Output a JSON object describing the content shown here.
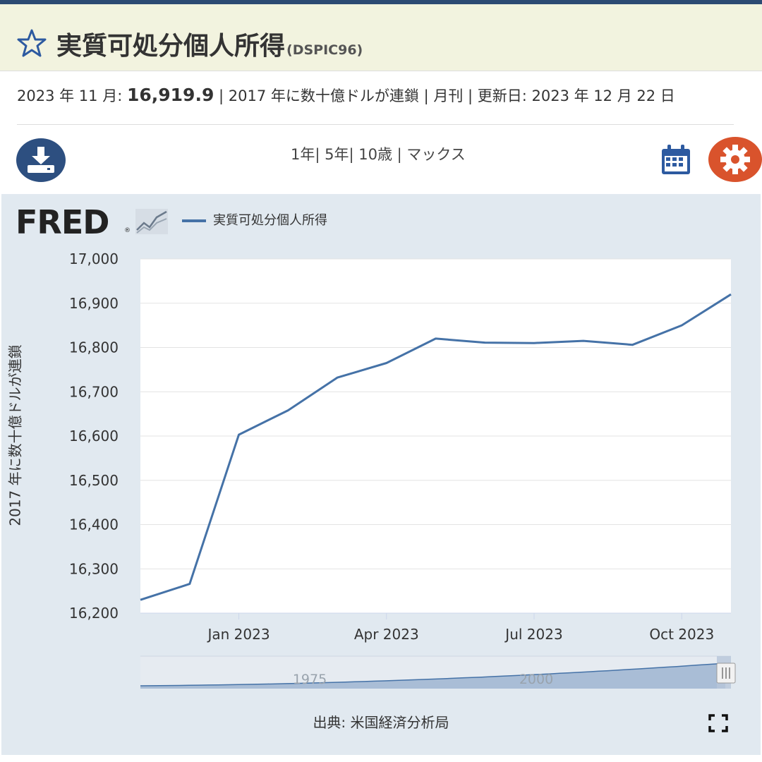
{
  "header": {
    "title": "実質可処分個人所得",
    "series_id": "(DSPIC96)"
  },
  "meta": {
    "date_label": "2023 年 11 月:",
    "value": "16,919.9",
    "units": "| 2017 年に数十億ドルが連鎖 | 月刊 | 更新日:",
    "updated": "2023 年 12 月 22 日"
  },
  "range": {
    "one_year": "1年",
    "five_year": "| 5年",
    "ten_year": "| 10歳",
    "max": "| マックス"
  },
  "icons": {
    "star": "star-icon",
    "download": "download-icon",
    "calendar": "calendar-icon",
    "settings": "gear-icon",
    "fullscreen": "fullscreen-icon"
  },
  "colors": {
    "line": "#4572a7",
    "header_bg": "#f2f3df",
    "chart_bg": "#e1e9f0",
    "settings": "#d9532c",
    "download": "#2d4f80"
  },
  "brand": {
    "logo": "FRED"
  },
  "chart_data": {
    "type": "line",
    "title": "",
    "legend": "実質可処分個人所得",
    "legend_placement": "top-left",
    "ylabel": "2017 年に数十億ドルが連鎖",
    "xlabel": "",
    "ylim": [
      16200,
      17000
    ],
    "yticks": [
      "16,200",
      "16,300",
      "16,400",
      "16,500",
      "16,600",
      "16,700",
      "16,800",
      "16,900",
      "17,000"
    ],
    "xticks": [
      "Jan 2023",
      "Apr 2023",
      "Jul 2023",
      "Oct 2023"
    ],
    "grid": true,
    "series": [
      {
        "name": "実質可処分個人所得",
        "x": [
          "2022-11",
          "2022-12",
          "2023-01",
          "2023-02",
          "2023-03",
          "2023-04",
          "2023-05",
          "2023-06",
          "2023-07",
          "2023-08",
          "2023-09",
          "2023-10",
          "2023-11"
        ],
        "values": [
          16230,
          16266,
          16603,
          16658,
          16732,
          16765,
          16820,
          16811,
          16810,
          16815,
          16806,
          16850,
          16920
        ]
      }
    ],
    "navigator_labels": [
      "1975",
      "2000"
    ],
    "source": "出典: 米国経済分析局"
  }
}
